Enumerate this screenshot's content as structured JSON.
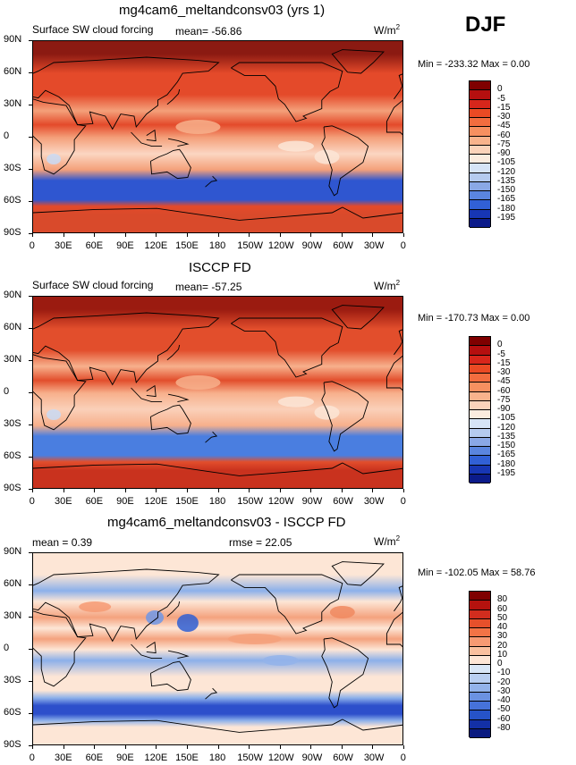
{
  "season": "DJF",
  "panels": [
    {
      "title": "mg4cam6_meltandconsv03 (yrs 1)",
      "left_label": "Surface SW cloud forcing",
      "mid_label": "mean=  -56.86",
      "units": "W/m",
      "units_sup": "2",
      "stats": "Min = -233.32  Max =    0.00",
      "colorbar_labels": [
        "0",
        "-5",
        "-15",
        "-30",
        "-45",
        "-60",
        "-75",
        "-90",
        "-105",
        "-120",
        "-135",
        "-150",
        "-165",
        "-180",
        "-195"
      ],
      "colorbar_colors": [
        "#7f0000",
        "#b50f0f",
        "#d7261b",
        "#ea4a24",
        "#f26d3f",
        "#f69060",
        "#f8b38c",
        "#fbd3ba",
        "#fbecdf",
        "#d6e4f6",
        "#b5cbef",
        "#8aa8e6",
        "#5a85df",
        "#3160d6",
        "#1736b4",
        "#0b1b8a"
      ],
      "sample_colors": {
        "polar_north": "#8b1a12",
        "mid_lat": "#e44a2a",
        "tropics": "#f4a07a",
        "stratus": "#fbd6c2",
        "southern_ocean": "#2f56d0",
        "antarctic": "#d94a2b"
      }
    },
    {
      "title": "ISCCP FD",
      "left_label": "Surface SW cloud forcing",
      "mid_label": "mean=  -57.25",
      "units": "W/m",
      "units_sup": "2",
      "stats": "Min = -170.73  Max =    0.00",
      "colorbar_labels": [
        "0",
        "-5",
        "-15",
        "-30",
        "-45",
        "-60",
        "-75",
        "-90",
        "-105",
        "-120",
        "-135",
        "-150",
        "-165",
        "-180",
        "-195"
      ],
      "colorbar_colors": [
        "#7f0000",
        "#b50f0f",
        "#d7261b",
        "#ea4a24",
        "#f26d3f",
        "#f69060",
        "#f8b38c",
        "#fbd3ba",
        "#fbecdf",
        "#d6e4f6",
        "#b5cbef",
        "#8aa8e6",
        "#5a85df",
        "#3160d6",
        "#1736b4",
        "#0b1b8a"
      ],
      "sample_colors": {
        "polar_north": "#9b1b10",
        "mid_lat": "#e24e2c",
        "tropics": "#f7b08c",
        "stratus": "#fad0b9",
        "southern_ocean": "#4a7ee0",
        "antarctic": "#c9321e"
      }
    },
    {
      "title": "mg4cam6_meltandconsv03 - ISCCP FD",
      "left_label": "mean =    0.39",
      "mid_label": "rmse =   22.05",
      "units": "W/m",
      "units_sup": "2",
      "stats": "Min = -102.05  Max =   58.76",
      "colorbar_labels": [
        "80",
        "60",
        "50",
        "40",
        "30",
        "20",
        "10",
        "0",
        "-10",
        "-20",
        "-30",
        "-40",
        "-50",
        "-60",
        "-80"
      ],
      "colorbar_colors": [
        "#7f0000",
        "#b5120e",
        "#d22d1e",
        "#e6502b",
        "#f27346",
        "#f69a73",
        "#f9c09f",
        "#fde6d6",
        "#d9e7f7",
        "#b9cff1",
        "#93b3ea",
        "#6b92e2",
        "#4672d9",
        "#2653c8",
        "#1330a6",
        "#0a1a80"
      ],
      "sample_colors": {
        "background": "#fde6d6",
        "pos": "#f4a27e",
        "neg": "#8cb0ea",
        "southern_ocean": "#2d4fcb"
      }
    }
  ],
  "lat_labels": [
    "90N",
    "60N",
    "30N",
    "0",
    "30S",
    "60S",
    "90S"
  ],
  "lon_labels": [
    "0",
    "30E",
    "60E",
    "90E",
    "120E",
    "150E",
    "180",
    "150W",
    "120W",
    "90W",
    "60W",
    "30W",
    "0"
  ]
}
